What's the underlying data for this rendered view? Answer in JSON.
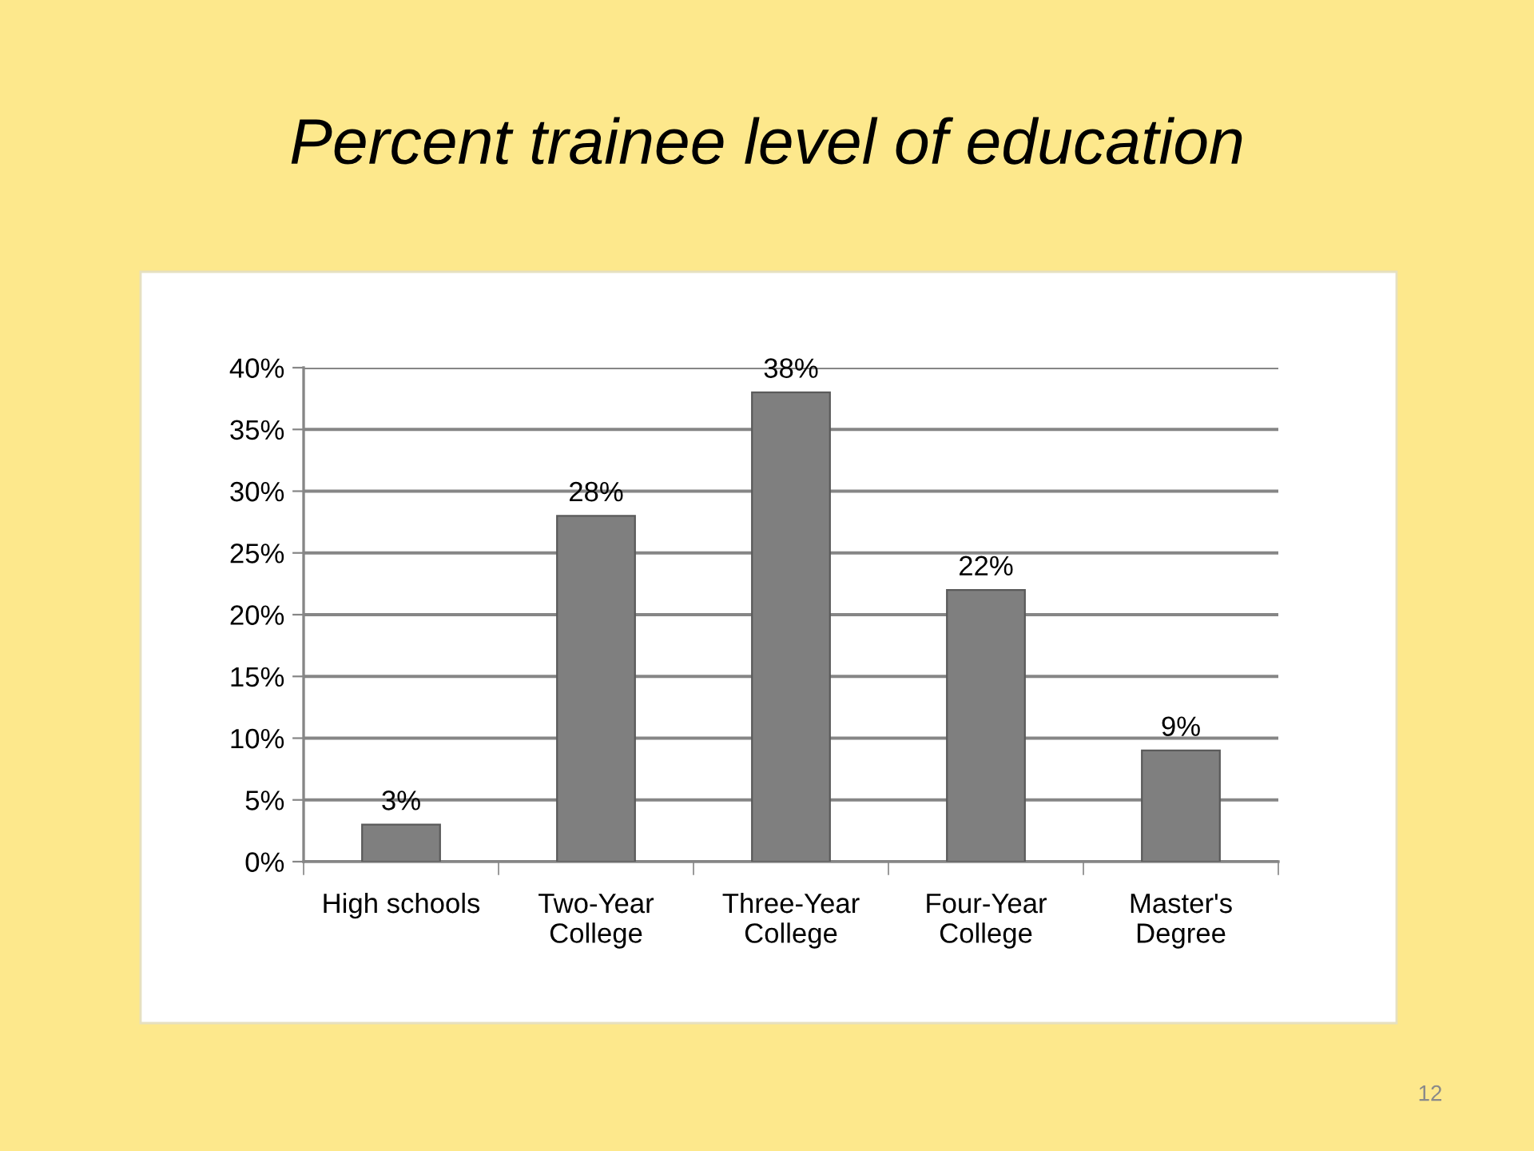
{
  "chart_data": {
    "type": "bar",
    "title": "Percent trainee level of education",
    "categories": [
      "High schools",
      "Two-Year\nCollege",
      "Three-Year\nCollege",
      "Four-Year\nCollege",
      "Master's\nDegree"
    ],
    "values": [
      3,
      28,
      38,
      22,
      9
    ],
    "color": "#7f7f7f",
    "value_labels": [
      "3%",
      "28%",
      "38%",
      "22%",
      "9%"
    ],
    "ylim": [
      0,
      40
    ],
    "yticks": [
      {
        "value": 0,
        "label": "0%"
      },
      {
        "value": 5,
        "label": "5%"
      },
      {
        "value": 10,
        "label": "10%"
      },
      {
        "value": 15,
        "label": "15%"
      },
      {
        "value": 20,
        "label": "20%"
      },
      {
        "value": 25,
        "label": "25%"
      },
      {
        "value": 30,
        "label": "30%"
      },
      {
        "value": 35,
        "label": "35%"
      },
      {
        "value": 40,
        "label": "40%"
      }
    ],
    "grid": "y",
    "legend": false,
    "annotations": [
      "12"
    ]
  }
}
